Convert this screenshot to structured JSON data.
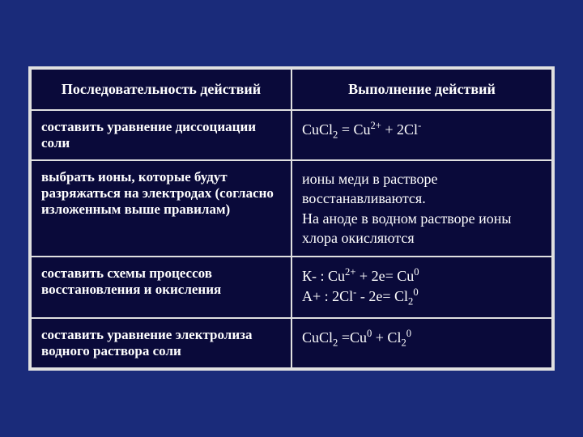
{
  "background_color": "#1a2b7a",
  "table_bg": "#0a0a3a",
  "border_color": "#e0e0e0",
  "text_color": "#ffffff",
  "header": {
    "col1": "Последовательность действий",
    "col2": "Выполнение действий"
  },
  "rows": [
    {
      "left": "составить уравнение диссоциации соли",
      "right_html": "CuCl<sub>2</sub> = Cu<sup>2+</sup> + 2Cl<sup>-</sup>"
    },
    {
      "left": "выбрать ионы, которые будут разряжаться на электродах (согласно изложенным выше правилам)",
      "right_html": "ионы меди в растворе восстанавливаются.<br>На аноде в водном растворе ионы хлора окисляются"
    },
    {
      "left": "составить схемы процессов восстановления и окисления",
      "right_html": "К- : Cu<sup>2+</sup> + 2e= Cu<sup>0</sup><br>А+ : 2Cl<sup>-</sup> - 2e= Cl<sub>2</sub><sup>0</sup>"
    },
    {
      "left": "составить уравнение электролиза водного раствора соли",
      "right_html": "CuCl<sub>2</sub> =Cu<sup>0</sup> + Cl<sub>2</sub><sup>0</sup>"
    }
  ]
}
